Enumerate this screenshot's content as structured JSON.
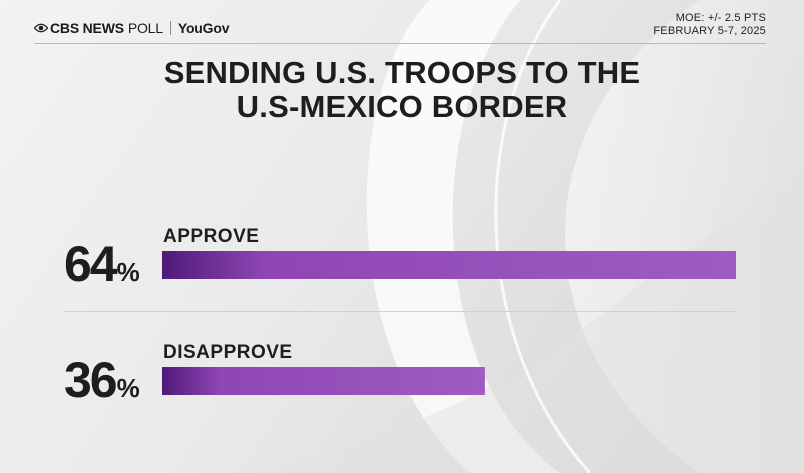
{
  "header": {
    "brand": "CBS NEWS",
    "poll_word": "POLL",
    "partner": "YouGov",
    "moe": "MOE: +/- 2.5 PTS",
    "dates": "FEBRUARY 5-7, 2025"
  },
  "icons": {
    "logo": "cbs-eye-icon"
  },
  "colors": {
    "bar_dark": "#4f1a78",
    "bar_main": "#8f46b4",
    "bar_light": "#9e5cc2",
    "text": "#1e1e1e"
  },
  "chart_data": {
    "type": "bar",
    "orientation": "horizontal",
    "title": [
      "SENDING U.S. TROOPS TO THE",
      "U.S-MEXICO BORDER"
    ],
    "categories": [
      "APPROVE",
      "DISAPPROVE"
    ],
    "values": [
      64,
      36
    ],
    "value_labels": [
      "64",
      "36"
    ],
    "unit": "%",
    "xlim": [
      0,
      64
    ],
    "grid": false,
    "legend": "none"
  }
}
